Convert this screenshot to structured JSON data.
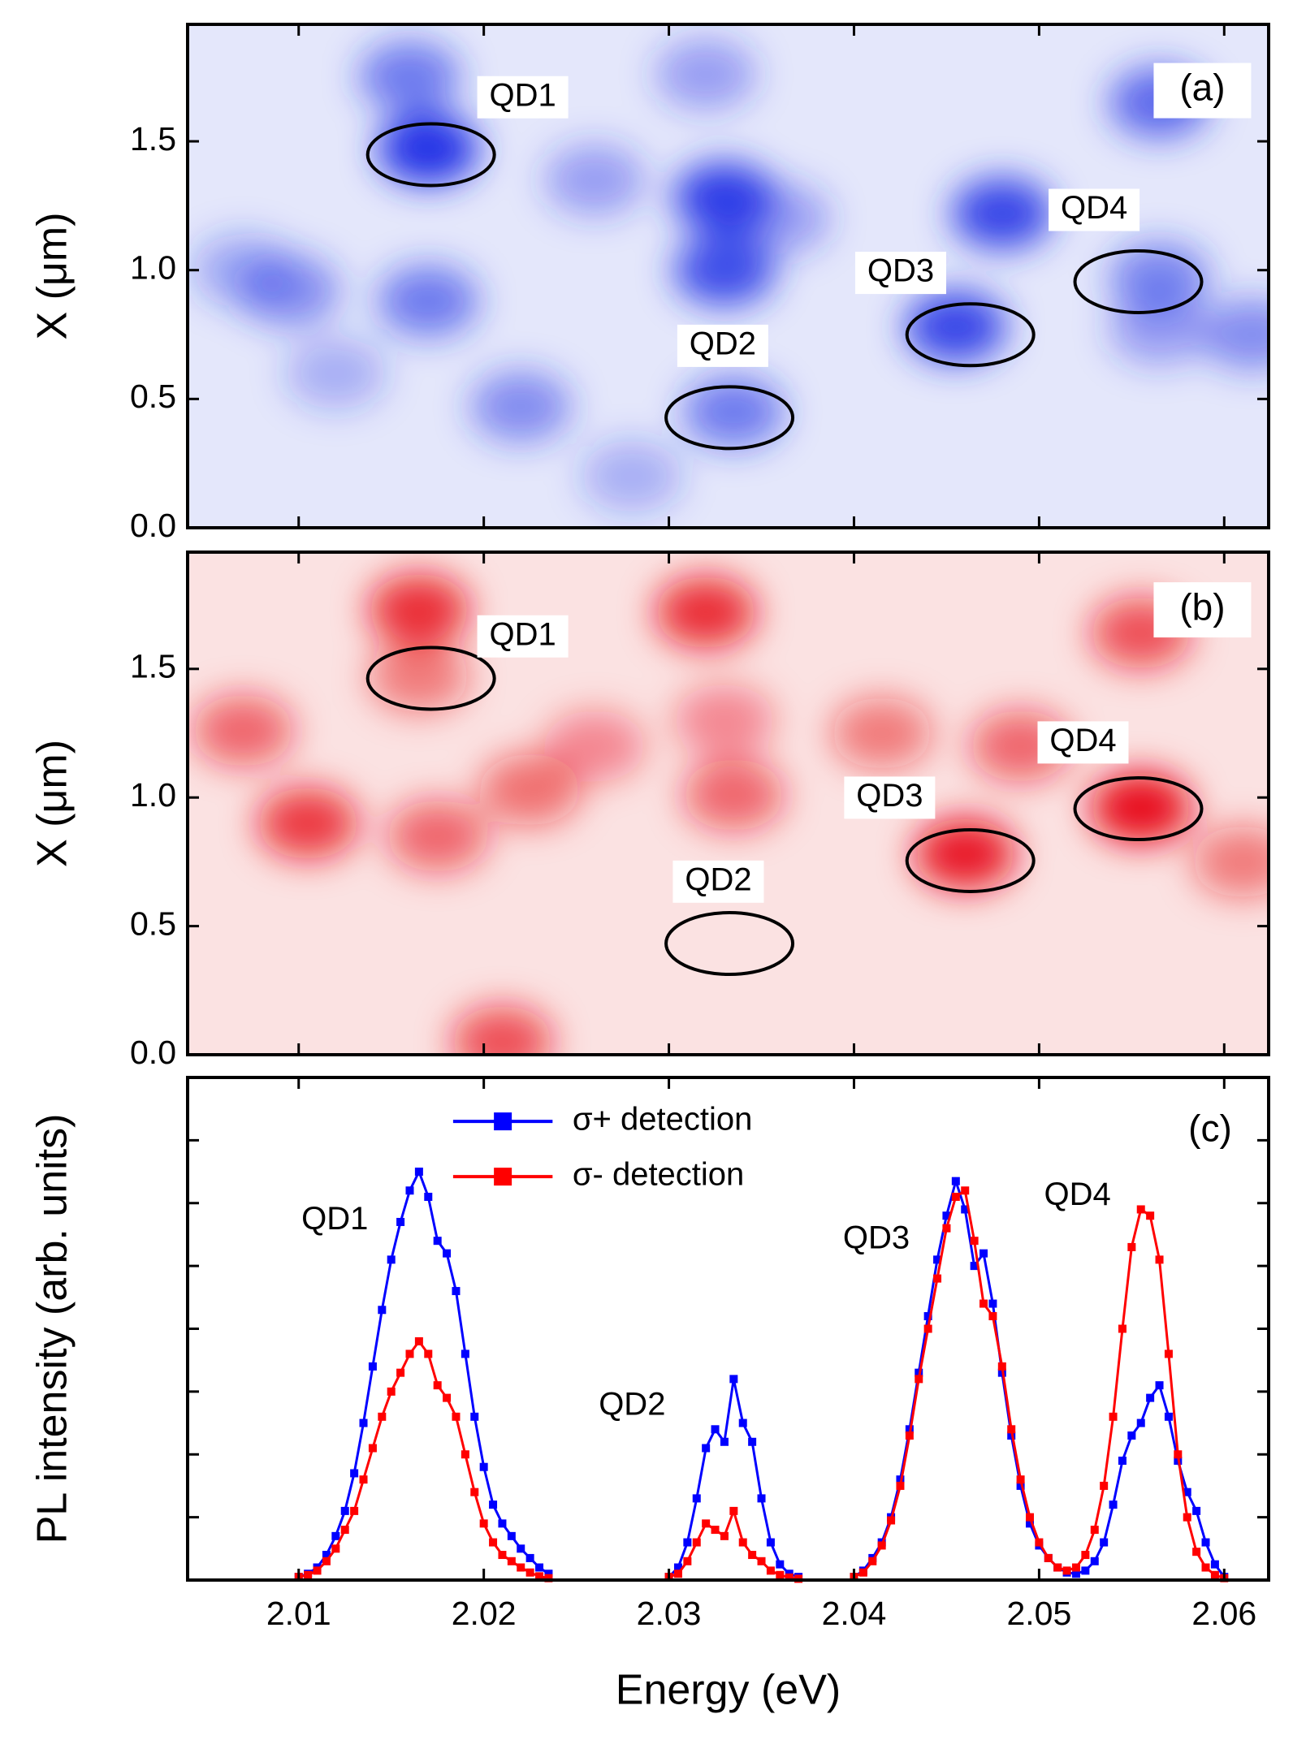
{
  "chart_data": [
    {
      "type": "heatmap",
      "panel_label": "(a)",
      "ylabel": "X (μm)",
      "color": "#2233e6",
      "background": "#e4e7fb",
      "xlim": [
        2.004,
        2.0624
      ],
      "xticks": [
        2.01,
        2.02,
        2.03,
        2.04,
        2.05,
        2.06
      ],
      "ylim": [
        0,
        1.954
      ],
      "yticks": [
        {
          "value": 0,
          "label": "0.0"
        },
        {
          "value": 0.5,
          "label": "0.5"
        },
        {
          "value": 1,
          "label": "1.0"
        },
        {
          "value": 1.5,
          "label": "1.5"
        }
      ],
      "annotations": [
        "QD1",
        "QD2",
        "QD3",
        "QD4"
      ],
      "spots": {
        "x": [
          2.017,
          2.016,
          2.017,
          2.0095,
          2.033,
          2.033,
          2.032,
          2.0335,
          2.022,
          2.0455,
          2.048,
          2.0565,
          2.0565,
          2.0565,
          2.0615,
          2.026,
          2.036,
          2.007,
          2.012,
          2.028
        ],
        "y": [
          1.47,
          1.75,
          0.88,
          0.92,
          1.28,
          1.0,
          1.76,
          0.45,
          0.47,
          0.78,
          1.22,
          0.97,
          1.65,
          0.77,
          0.75,
          1.35,
          1.2,
          1.0,
          0.6,
          0.2
        ],
        "intensity": [
          1.0,
          0.6,
          0.6,
          0.5,
          0.95,
          0.85,
          0.4,
          0.6,
          0.5,
          0.9,
          0.9,
          0.55,
          0.7,
          0.4,
          0.5,
          0.4,
          0.4,
          0.35,
          0.3,
          0.3
        ]
      }
    },
    {
      "type": "heatmap",
      "panel_label": "(b)",
      "ylabel": "X (μm)",
      "color": "#e8101a",
      "background": "#fbe2e2",
      "xlim": [
        2.004,
        2.0624
      ],
      "xticks": [
        2.01,
        2.02,
        2.03,
        2.04,
        2.05,
        2.06
      ],
      "ylim": [
        0,
        1.954
      ],
      "yticks": [
        {
          "value": 0,
          "label": "0.0"
        },
        {
          "value": 0.5,
          "label": "0.5"
        },
        {
          "value": 1,
          "label": "1.0"
        },
        {
          "value": 1.5,
          "label": "1.5"
        }
      ],
      "annotations": [
        "QD1",
        "QD2",
        "QD3",
        "QD4"
      ],
      "spots": {
        "x": [
          2.0165,
          2.0165,
          2.032,
          2.007,
          2.0105,
          2.0175,
          2.0225,
          2.0335,
          2.0415,
          2.046,
          2.0555,
          2.0555,
          2.049,
          2.061,
          2.021,
          2.033,
          2.026
        ],
        "y": [
          1.73,
          1.47,
          1.72,
          1.26,
          0.9,
          0.85,
          1.03,
          1.01,
          1.25,
          0.78,
          0.96,
          1.64,
          1.2,
          0.75,
          0.05,
          1.3,
          1.2
        ],
        "intensity": [
          0.85,
          0.5,
          0.85,
          0.6,
          0.8,
          0.6,
          0.55,
          0.6,
          0.5,
          0.95,
          1.0,
          0.7,
          0.6,
          0.5,
          0.7,
          0.4,
          0.4
        ]
      }
    },
    {
      "type": "line",
      "panel_label": "(c)",
      "xlabel": "Energy (eV)",
      "ylabel": "PL intensity (arb. units)",
      "xlim": [
        2.004,
        2.0624
      ],
      "xticks": [
        2.01,
        2.02,
        2.03,
        2.04,
        2.05,
        2.06
      ],
      "ylim": [
        0,
        8
      ],
      "yticks": [
        0,
        1,
        2,
        3,
        4,
        5,
        6,
        7,
        8
      ],
      "annotations": [
        "QD1",
        "QD2",
        "QD3",
        "QD4"
      ],
      "x": [
        2.01,
        2.0105,
        2.011,
        2.0115,
        2.012,
        2.0125,
        2.013,
        2.0135,
        2.014,
        2.0145,
        2.015,
        2.0155,
        2.016,
        2.0165,
        2.017,
        2.0175,
        2.018,
        2.0185,
        2.019,
        2.0195,
        2.02,
        2.0205,
        2.021,
        2.0215,
        2.022,
        2.0225,
        2.023,
        2.0235,
        null,
        2.03,
        2.0305,
        2.031,
        2.0315,
        2.032,
        2.0325,
        2.033,
        2.0335,
        2.034,
        2.0345,
        2.035,
        2.0355,
        2.036,
        2.0365,
        2.037,
        null,
        2.04,
        2.0405,
        2.041,
        2.0415,
        2.042,
        2.0425,
        2.043,
        2.0435,
        2.044,
        2.0445,
        2.045,
        2.0455,
        2.046,
        2.0465,
        2.047,
        2.0475,
        2.048,
        2.0485,
        2.049,
        2.0495,
        2.05,
        2.0505,
        2.051,
        2.0515,
        2.052,
        2.0525,
        2.053,
        2.0535,
        2.054,
        2.0545,
        2.055,
        2.0555,
        2.056,
        2.0565,
        2.057,
        2.0575,
        2.058,
        2.0585,
        2.059,
        2.0595,
        2.06
      ],
      "series": [
        {
          "name": "σ+ detection",
          "color": "#0000ff",
          "values": [
            0.05,
            0.1,
            0.2,
            0.4,
            0.7,
            1.1,
            1.7,
            2.5,
            3.4,
            4.3,
            5.1,
            5.7,
            6.2,
            6.5,
            6.1,
            5.4,
            5.2,
            4.6,
            3.6,
            2.6,
            1.8,
            1.2,
            0.9,
            0.7,
            0.5,
            0.35,
            0.2,
            0.1,
            null,
            0.05,
            0.2,
            0.6,
            1.3,
            2.1,
            2.4,
            2.2,
            3.2,
            2.5,
            2.2,
            1.3,
            0.6,
            0.25,
            0.1,
            0.05,
            null,
            0.05,
            0.15,
            0.35,
            0.6,
            1.0,
            1.6,
            2.4,
            3.3,
            4.2,
            5.1,
            5.8,
            6.35,
            5.9,
            5.0,
            5.2,
            4.4,
            3.3,
            2.3,
            1.5,
            0.9,
            0.55,
            0.35,
            0.2,
            0.12,
            0.1,
            0.15,
            0.3,
            0.6,
            1.2,
            1.9,
            2.3,
            2.5,
            2.9,
            3.1,
            2.6,
            1.9,
            1.4,
            1.1,
            0.6,
            0.25,
            0.05
          ]
        },
        {
          "name": "σ- detection",
          "color": "#ff0000",
          "values": [
            0.05,
            0.08,
            0.15,
            0.3,
            0.5,
            0.8,
            1.1,
            1.6,
            2.1,
            2.6,
            3.0,
            3.3,
            3.6,
            3.8,
            3.6,
            3.1,
            2.9,
            2.6,
            2.0,
            1.4,
            0.9,
            0.6,
            0.4,
            0.3,
            0.2,
            0.12,
            0.06,
            0.03,
            null,
            0.05,
            0.1,
            0.3,
            0.6,
            0.9,
            0.8,
            0.7,
            1.1,
            0.6,
            0.4,
            0.3,
            0.15,
            0.08,
            0.04,
            0.02,
            null,
            0.05,
            0.12,
            0.3,
            0.55,
            0.95,
            1.5,
            2.3,
            3.2,
            4.0,
            4.8,
            5.6,
            6.1,
            6.2,
            5.4,
            4.4,
            4.2,
            3.4,
            2.4,
            1.6,
            1.0,
            0.6,
            0.35,
            0.2,
            0.15,
            0.2,
            0.4,
            0.8,
            1.5,
            2.6,
            4.0,
            5.3,
            5.9,
            5.8,
            5.1,
            3.6,
            2.0,
            1.0,
            0.45,
            0.2,
            0.08,
            0.03
          ]
        }
      ]
    }
  ]
}
